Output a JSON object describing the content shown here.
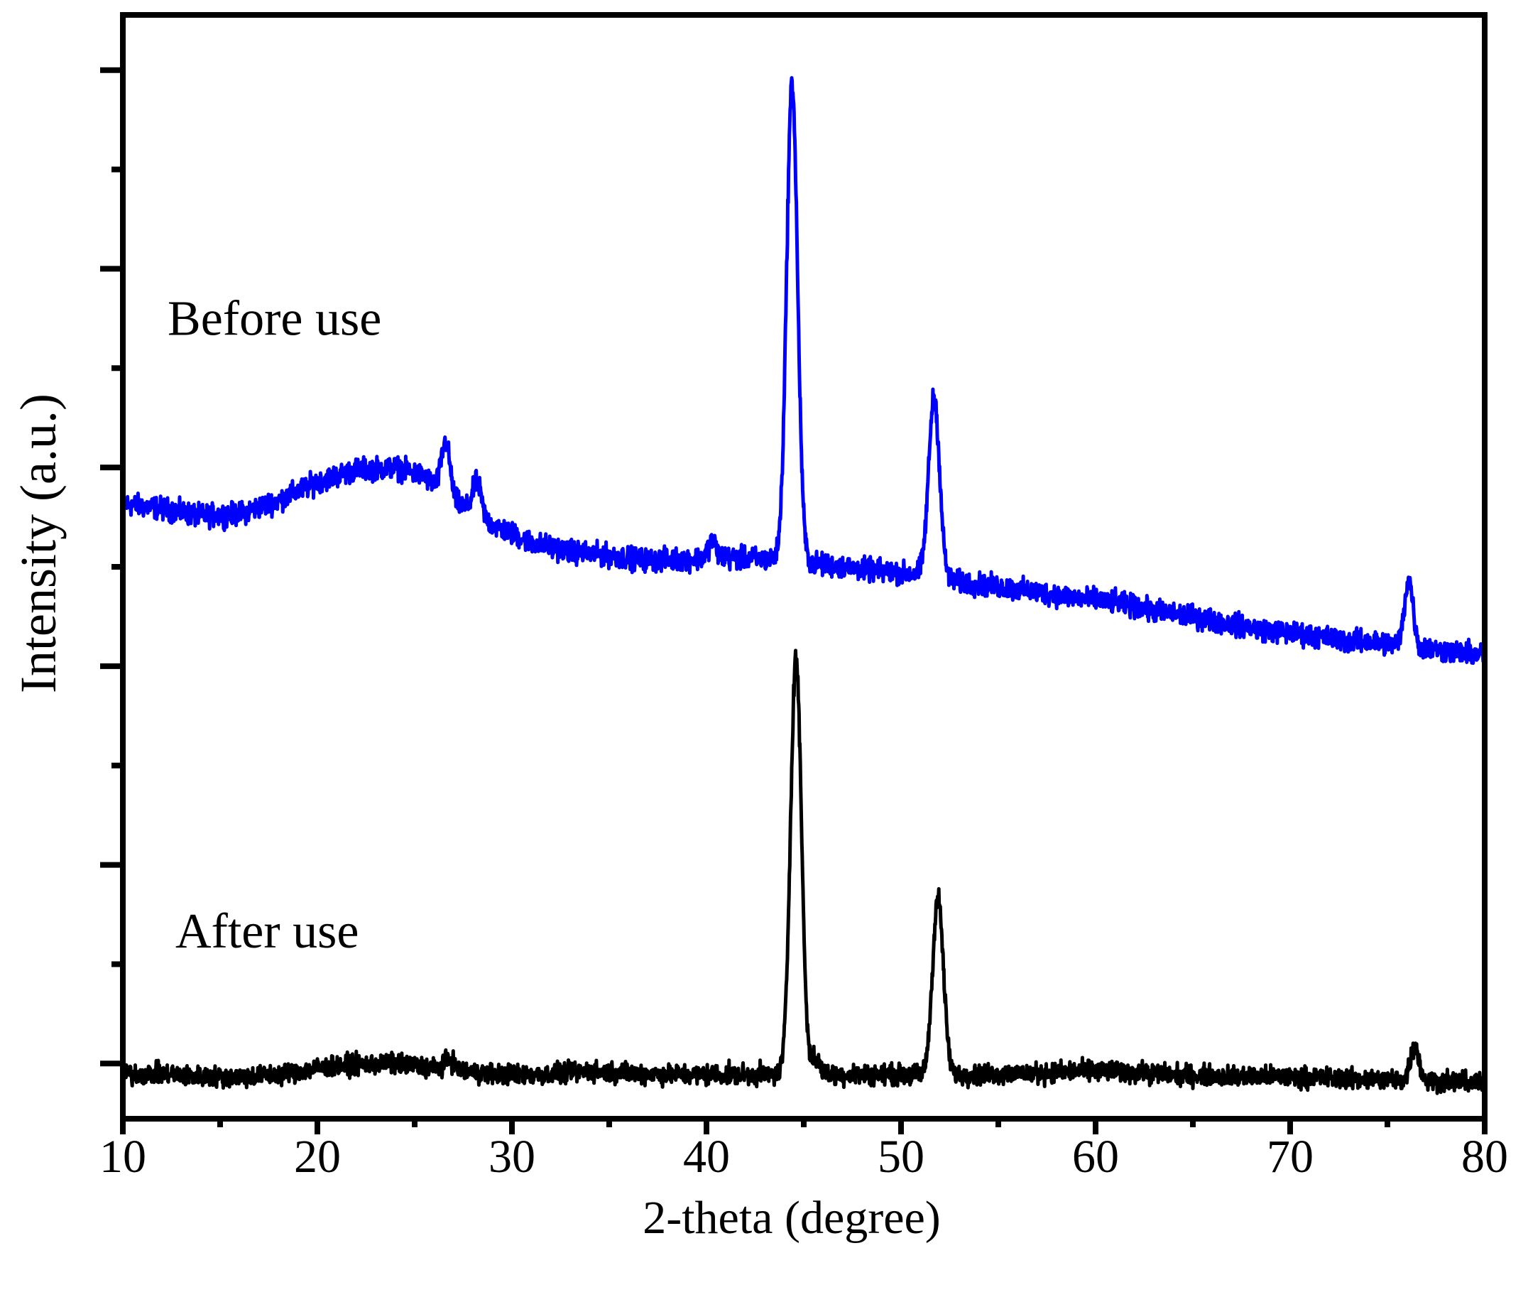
{
  "chart_data": {
    "type": "line",
    "xlabel": "2-theta (degree)",
    "ylabel": "Intensity (a.u.)",
    "xlim": [
      10,
      80
    ],
    "ylim": [
      0,
      1
    ],
    "x_ticks": [
      10,
      20,
      30,
      40,
      50,
      60,
      70,
      80
    ],
    "x_tick_labels": [
      "10",
      "20",
      "30",
      "40",
      "50",
      "60",
      "70",
      "80"
    ],
    "x_minor_ticks": [
      15,
      25,
      35,
      45,
      55,
      65,
      75
    ],
    "y_ticks": [
      0.05,
      0.14,
      0.23,
      0.32,
      0.41,
      0.5,
      0.59,
      0.68,
      0.77,
      0.86,
      0.95
    ],
    "y_tick_labels_shown": false,
    "grid": false,
    "series": [
      {
        "name": "Before use",
        "color": "#0000ff",
        "baseline": [
          [
            10,
            0.557
          ],
          [
            12,
            0.553
          ],
          [
            14,
            0.546
          ],
          [
            16,
            0.548
          ],
          [
            18,
            0.56
          ],
          [
            20,
            0.577
          ],
          [
            22,
            0.588
          ],
          [
            24,
            0.59
          ],
          [
            25.5,
            0.582
          ],
          [
            27,
            0.56
          ],
          [
            29,
            0.538
          ],
          [
            31,
            0.522
          ],
          [
            33,
            0.514
          ],
          [
            35,
            0.51
          ],
          [
            37,
            0.506
          ],
          [
            39,
            0.507
          ],
          [
            41,
            0.508
          ],
          [
            43,
            0.507
          ],
          [
            45,
            0.504
          ],
          [
            47,
            0.5
          ],
          [
            49,
            0.496
          ],
          [
            51,
            0.493
          ],
          [
            53,
            0.486
          ],
          [
            55,
            0.482
          ],
          [
            57,
            0.477
          ],
          [
            59,
            0.472
          ],
          [
            61,
            0.468
          ],
          [
            63,
            0.46
          ],
          [
            65,
            0.455
          ],
          [
            67,
            0.448
          ],
          [
            69,
            0.442
          ],
          [
            71,
            0.438
          ],
          [
            73,
            0.433
          ],
          [
            75,
            0.431
          ],
          [
            77,
            0.426
          ],
          [
            80,
            0.42
          ]
        ],
        "peaks": [
          {
            "x": 26.6,
            "height": 0.047
          },
          {
            "x": 28.2,
            "height": 0.03
          },
          {
            "x": 40.3,
            "height": 0.015
          },
          {
            "x": 44.4,
            "height": 0.433
          },
          {
            "x": 51.7,
            "height": 0.163
          },
          {
            "x": 76.1,
            "height": 0.06
          }
        ],
        "noise": 0.01
      },
      {
        "name": "After use",
        "color": "#000000",
        "baseline": [
          [
            10,
            0.04
          ],
          [
            12,
            0.041
          ],
          [
            14,
            0.038
          ],
          [
            16,
            0.038
          ],
          [
            18,
            0.04
          ],
          [
            20,
            0.046
          ],
          [
            22,
            0.049
          ],
          [
            24,
            0.05
          ],
          [
            26,
            0.046
          ],
          [
            28,
            0.042
          ],
          [
            30,
            0.04
          ],
          [
            32,
            0.04
          ],
          [
            34,
            0.043
          ],
          [
            36,
            0.042
          ],
          [
            38,
            0.04
          ],
          [
            40,
            0.04
          ],
          [
            42,
            0.04
          ],
          [
            44,
            0.04
          ],
          [
            46,
            0.04
          ],
          [
            48,
            0.04
          ],
          [
            50,
            0.04
          ],
          [
            52,
            0.04
          ],
          [
            54,
            0.04
          ],
          [
            56,
            0.041
          ],
          [
            58,
            0.042
          ],
          [
            60,
            0.044
          ],
          [
            62,
            0.042
          ],
          [
            64,
            0.04
          ],
          [
            66,
            0.039
          ],
          [
            68,
            0.038
          ],
          [
            70,
            0.038
          ],
          [
            72,
            0.037
          ],
          [
            74,
            0.036
          ],
          [
            76,
            0.035
          ],
          [
            78,
            0.034
          ],
          [
            80,
            0.032
          ]
        ],
        "peaks": [
          {
            "x": 26.8,
            "height": 0.01
          },
          {
            "x": 44.6,
            "height": 0.378
          },
          {
            "x": 45.6,
            "height": 0.014
          },
          {
            "x": 51.9,
            "height": 0.16
          },
          {
            "x": 76.4,
            "height": 0.031
          }
        ],
        "noise": 0.009
      }
    ],
    "annotations": [
      {
        "text": "Before use",
        "x": 12.3,
        "y": 0.71
      },
      {
        "text": "After use",
        "x": 12.7,
        "y": 0.155
      }
    ]
  }
}
